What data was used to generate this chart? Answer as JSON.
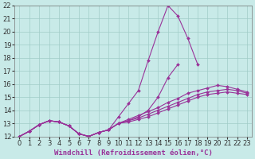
{
  "xlabel": "Windchill (Refroidissement éolien,°C)",
  "xlim": [
    -0.5,
    23.5
  ],
  "ylim": [
    12,
    22
  ],
  "xticks": [
    0,
    1,
    2,
    3,
    4,
    5,
    6,
    7,
    8,
    9,
    10,
    11,
    12,
    13,
    14,
    15,
    16,
    17,
    18,
    19,
    20,
    21,
    22,
    23
  ],
  "yticks": [
    12,
    13,
    14,
    15,
    16,
    17,
    18,
    19,
    20,
    21,
    22
  ],
  "bg_color": "#c8eae8",
  "grid_color": "#a0ccc8",
  "line_color": "#993399",
  "lines": [
    [
      12.0,
      12.4,
      12.9,
      13.2,
      13.1,
      12.8,
      12.2,
      12.0,
      12.3,
      12.5,
      13.5,
      14.5,
      15.5,
      17.8,
      20.0,
      22.0,
      21.2,
      19.5,
      17.5,
      null,
      null,
      null,
      null,
      null
    ],
    [
      12.0,
      12.4,
      12.9,
      13.2,
      13.1,
      12.8,
      12.2,
      12.0,
      12.3,
      12.5,
      13.0,
      13.2,
      13.5,
      14.0,
      15.0,
      16.5,
      17.5,
      null,
      null,
      null,
      null,
      null,
      null,
      null
    ],
    [
      12.0,
      12.4,
      12.9,
      13.2,
      13.1,
      12.8,
      12.2,
      12.0,
      12.3,
      12.5,
      13.0,
      13.3,
      13.6,
      13.9,
      14.2,
      14.6,
      14.9,
      15.3,
      15.5,
      15.7,
      15.9,
      15.8,
      15.6,
      15.4
    ],
    [
      12.0,
      12.4,
      12.9,
      13.2,
      13.1,
      12.8,
      12.2,
      12.0,
      12.3,
      12.5,
      13.0,
      13.2,
      13.4,
      13.7,
      14.0,
      14.3,
      14.6,
      14.9,
      15.2,
      15.4,
      15.5,
      15.6,
      15.5,
      15.3
    ],
    [
      12.0,
      12.4,
      12.9,
      13.2,
      13.1,
      12.8,
      12.2,
      12.0,
      12.3,
      12.5,
      13.0,
      13.1,
      13.3,
      13.5,
      13.8,
      14.1,
      14.4,
      14.7,
      15.0,
      15.2,
      15.3,
      15.4,
      15.3,
      15.2
    ]
  ],
  "line_width": 0.8,
  "marker": "D",
  "marker_size": 2.0,
  "font_size": 6,
  "label_fontsize": 6.5
}
